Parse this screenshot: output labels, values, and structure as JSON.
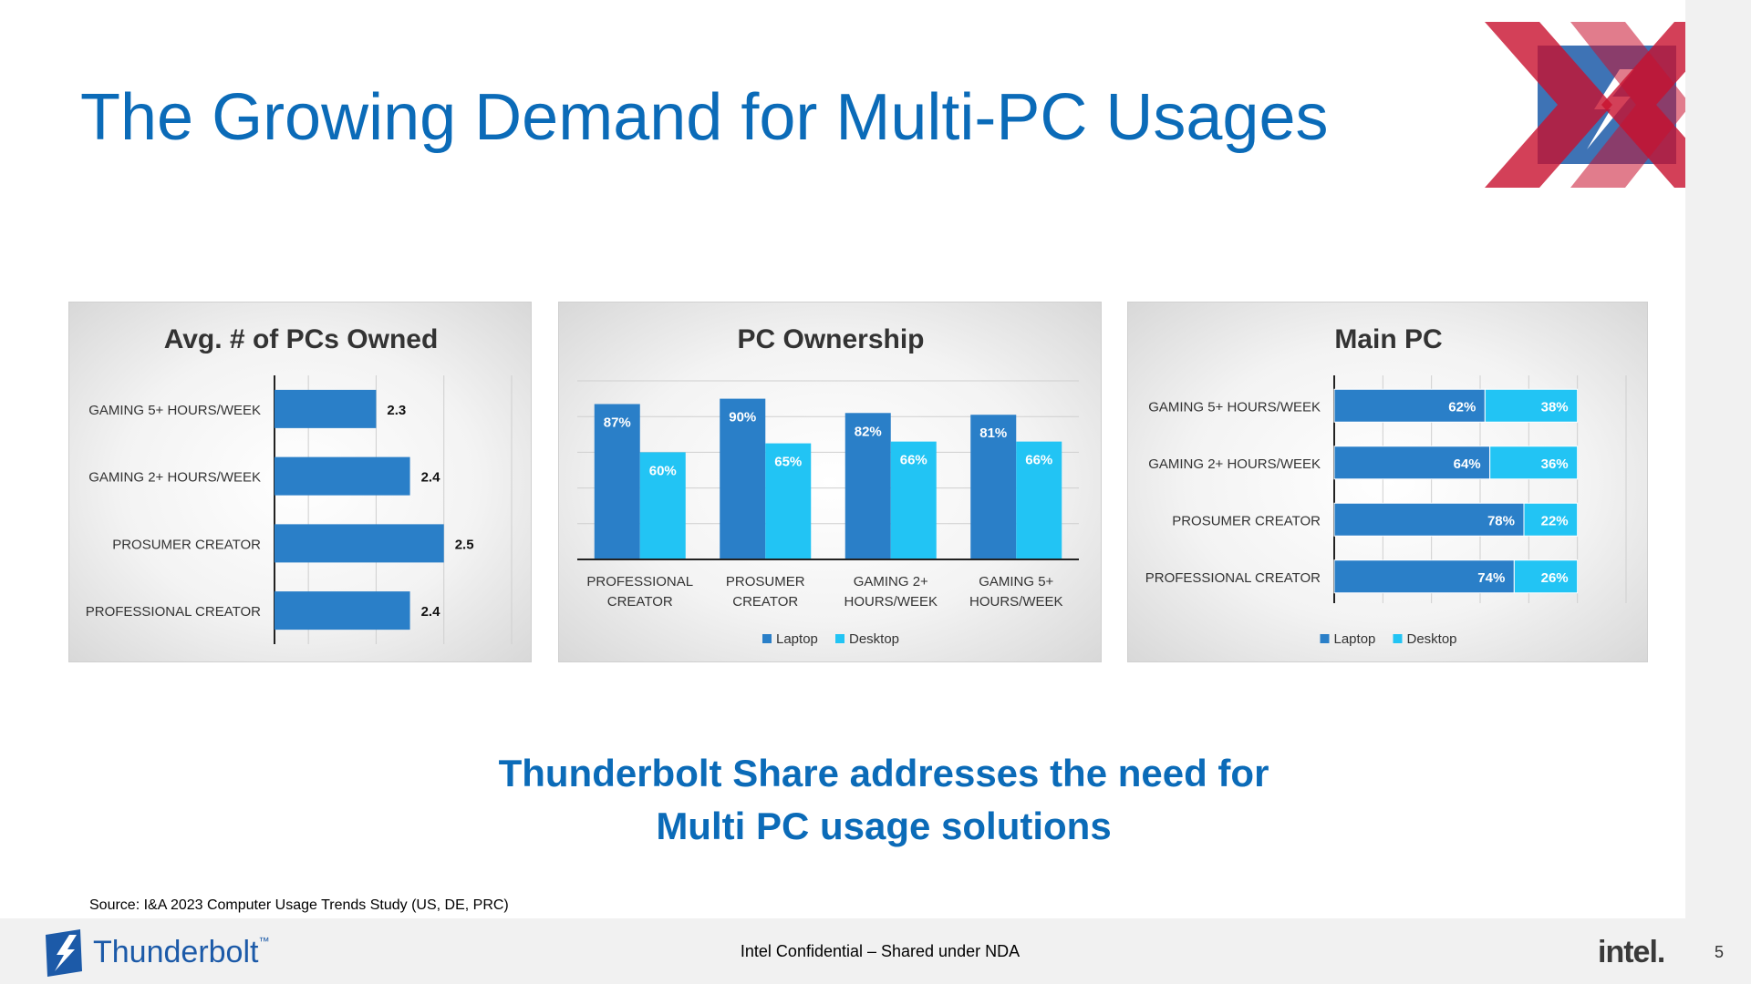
{
  "slide": {
    "title": "The Growing Demand for Multi-PC Usages",
    "tagline_line1": "Thunderbolt Share addresses the need for",
    "tagline_line2": "Multi PC usage solutions",
    "source": "Source: I&A 2023 Computer Usage Trends Study (US, DE, PRC)",
    "footer_brand": "Thunderbolt",
    "footer_brand_mark": "™",
    "confidential": "Intel Confidential – Shared under NDA",
    "intel_logo": "intel.",
    "page_number": "5"
  },
  "colors": {
    "title": "#0b6bb8",
    "laptop": "#2a7fc8",
    "desktop": "#22c4f4",
    "overlay_red": "#c8102e",
    "logo_blue": "#1c5aa8"
  },
  "icons": {
    "corner_logo": "thunderbolt-x-logo-icon",
    "footer_logo": "thunderbolt-bolt-icon"
  },
  "chart_data": [
    {
      "type": "bar",
      "orientation": "horizontal",
      "title": "Avg. # of PCs Owned",
      "categories": [
        "GAMING 5+ HOURS/WEEK",
        "GAMING 2+ HOURS/WEEK",
        "PROSUMER CREATOR",
        "PROFESSIONAL CREATOR"
      ],
      "values": [
        2.3,
        2.4,
        2.5,
        2.4
      ],
      "value_labels": [
        "2.3",
        "2.4",
        "2.5",
        "2.4"
      ],
      "xlim": [
        2.0,
        2.7
      ],
      "grid": true
    },
    {
      "type": "bar",
      "orientation": "vertical",
      "title": "PC Ownership",
      "categories": [
        [
          "PROFESSIONAL",
          "CREATOR"
        ],
        [
          "PROSUMER",
          "CREATOR"
        ],
        [
          "GAMING 2+",
          "HOURS/WEEK"
        ],
        [
          "GAMING 5+",
          "HOURS/WEEK"
        ]
      ],
      "series": [
        {
          "name": "Laptop",
          "values": [
            87,
            90,
            82,
            81
          ],
          "labels": [
            "87%",
            "90%",
            "82%",
            "81%"
          ]
        },
        {
          "name": "Desktop",
          "values": [
            60,
            65,
            66,
            66
          ],
          "labels": [
            "60%",
            "65%",
            "66%",
            "66%"
          ]
        }
      ],
      "ylim": [
        0,
        100
      ],
      "grid": true,
      "legend": "bottom"
    },
    {
      "type": "bar",
      "orientation": "horizontal-stacked",
      "title": "Main PC",
      "categories": [
        "GAMING 5+ HOURS/WEEK",
        "GAMING 2+ HOURS/WEEK",
        "PROSUMER CREATOR",
        "PROFESSIONAL CREATOR"
      ],
      "series": [
        {
          "name": "Laptop",
          "values": [
            62,
            64,
            78,
            74
          ],
          "labels": [
            "62%",
            "64%",
            "78%",
            "74%"
          ]
        },
        {
          "name": "Desktop",
          "values": [
            38,
            36,
            22,
            26
          ],
          "labels": [
            "38%",
            "36%",
            "22%",
            "26%"
          ]
        }
      ],
      "xlim": [
        0,
        120
      ],
      "grid": true,
      "legend": "bottom"
    }
  ]
}
